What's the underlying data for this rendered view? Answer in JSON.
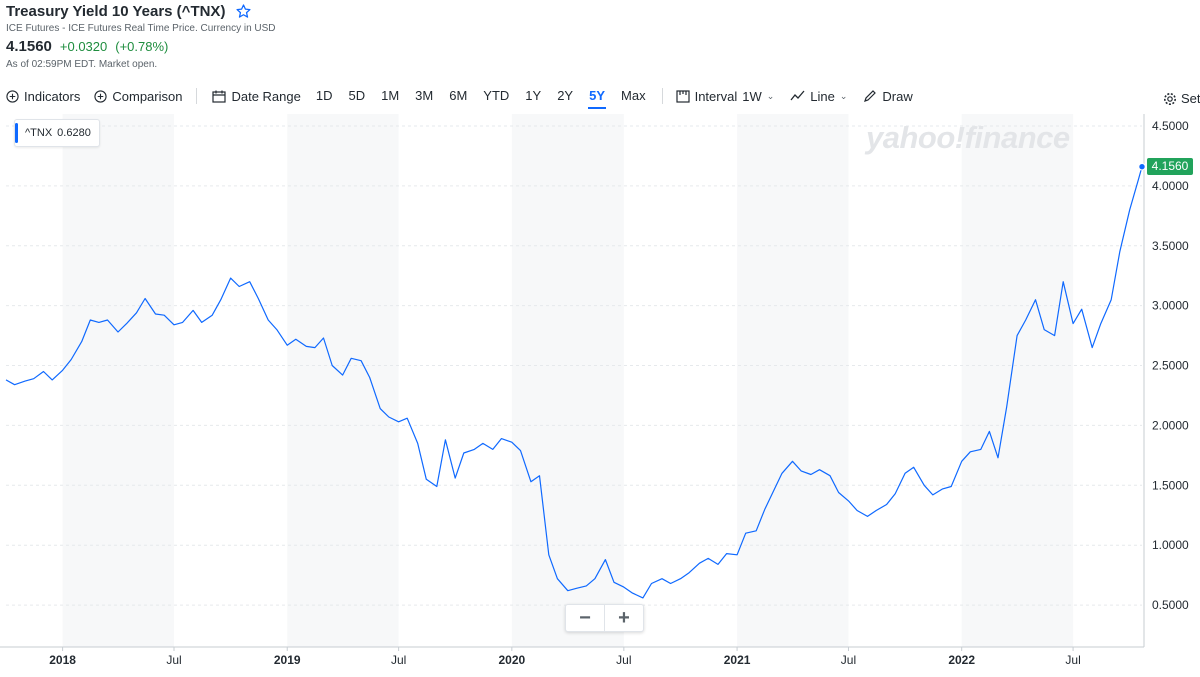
{
  "quote": {
    "title": "Treasury Yield 10 Years (^TNX)",
    "subtitle": "ICE Futures - ICE Futures Real Time Price. Currency in USD",
    "price": "4.1560",
    "change": "+0.0320",
    "change_pct": "(+0.78%)",
    "as_of": "As of 02:59PM EDT. Market open."
  },
  "toolbar": {
    "indicators": "Indicators",
    "comparison": "Comparison",
    "date_range": "Date Range",
    "ranges": [
      "1D",
      "5D",
      "1M",
      "3M",
      "6M",
      "YTD",
      "1Y",
      "2Y",
      "5Y",
      "Max"
    ],
    "active_range": "5Y",
    "interval_label": "Interval",
    "interval_value": "1W",
    "line_label": "Line",
    "draw_label": "Draw",
    "settings_label": "Set"
  },
  "legend": {
    "symbol": "^TNX",
    "value": "0.6280"
  },
  "watermark": "yahoo!finance",
  "last_price_flag": "4.1560",
  "zoom": {
    "minus": "−",
    "plus": "+"
  },
  "colors": {
    "line": "#0f69ff",
    "up": "#21a35b",
    "text": "#232a31",
    "grid": "#e6e9ec",
    "band": "#f7f8f9"
  },
  "chart_data": {
    "type": "line",
    "series": [
      {
        "name": "^TNX",
        "x": [
          "2017-10-01",
          "2017-10-15",
          "2017-11-01",
          "2017-11-15",
          "2017-12-01",
          "2017-12-15",
          "2018-01-01",
          "2018-01-15",
          "2018-02-01",
          "2018-02-15",
          "2018-03-01",
          "2018-03-15",
          "2018-04-01",
          "2018-04-15",
          "2018-05-01",
          "2018-05-15",
          "2018-06-01",
          "2018-06-15",
          "2018-07-01",
          "2018-07-15",
          "2018-08-01",
          "2018-08-15",
          "2018-09-01",
          "2018-09-15",
          "2018-10-01",
          "2018-10-15",
          "2018-11-01",
          "2018-11-15",
          "2018-12-01",
          "2018-12-15",
          "2019-01-01",
          "2019-01-15",
          "2019-02-01",
          "2019-02-15",
          "2019-03-01",
          "2019-03-15",
          "2019-04-01",
          "2019-04-15",
          "2019-05-01",
          "2019-05-15",
          "2019-06-01",
          "2019-06-15",
          "2019-07-01",
          "2019-07-15",
          "2019-08-01",
          "2019-08-15",
          "2019-09-01",
          "2019-09-15",
          "2019-10-01",
          "2019-10-15",
          "2019-11-01",
          "2019-11-15",
          "2019-12-01",
          "2019-12-15",
          "2020-01-01",
          "2020-01-15",
          "2020-02-01",
          "2020-02-15",
          "2020-03-01",
          "2020-03-15",
          "2020-04-01",
          "2020-04-15",
          "2020-05-01",
          "2020-05-15",
          "2020-06-01",
          "2020-06-15",
          "2020-07-01",
          "2020-07-15",
          "2020-08-01",
          "2020-08-15",
          "2020-09-01",
          "2020-09-15",
          "2020-10-01",
          "2020-10-15",
          "2020-11-01",
          "2020-11-15",
          "2020-12-01",
          "2020-12-15",
          "2021-01-01",
          "2021-01-15",
          "2021-02-01",
          "2021-02-15",
          "2021-03-01",
          "2021-03-15",
          "2021-04-01",
          "2021-04-15",
          "2021-05-01",
          "2021-05-15",
          "2021-06-01",
          "2021-06-15",
          "2021-07-01",
          "2021-07-15",
          "2021-08-01",
          "2021-08-15",
          "2021-09-01",
          "2021-09-15",
          "2021-10-01",
          "2021-10-15",
          "2021-11-01",
          "2021-11-15",
          "2021-12-01",
          "2021-12-15",
          "2022-01-01",
          "2022-01-15",
          "2022-02-01",
          "2022-02-15",
          "2022-03-01",
          "2022-03-15",
          "2022-04-01",
          "2022-04-15",
          "2022-05-01",
          "2022-05-15",
          "2022-06-01",
          "2022-06-15",
          "2022-07-01",
          "2022-07-15",
          "2022-08-01",
          "2022-08-15",
          "2022-09-01",
          "2022-09-15",
          "2022-10-01",
          "2022-10-15",
          "2022-10-21"
        ],
        "values": [
          2.38,
          2.34,
          2.37,
          2.39,
          2.45,
          2.38,
          2.46,
          2.55,
          2.7,
          2.88,
          2.86,
          2.88,
          2.78,
          2.85,
          2.94,
          3.06,
          2.93,
          2.92,
          2.84,
          2.86,
          2.96,
          2.86,
          2.92,
          3.05,
          3.23,
          3.16,
          3.2,
          3.06,
          2.88,
          2.8,
          2.67,
          2.72,
          2.66,
          2.65,
          2.73,
          2.5,
          2.42,
          2.56,
          2.54,
          2.4,
          2.14,
          2.07,
          2.03,
          2.06,
          1.85,
          1.55,
          1.49,
          1.88,
          1.56,
          1.77,
          1.8,
          1.85,
          1.8,
          1.89,
          1.86,
          1.79,
          1.53,
          1.58,
          0.92,
          0.72,
          0.62,
          0.64,
          0.66,
          0.72,
          0.88,
          0.69,
          0.65,
          0.6,
          0.56,
          0.68,
          0.72,
          0.68,
          0.72,
          0.77,
          0.85,
          0.89,
          0.84,
          0.93,
          0.92,
          1.1,
          1.12,
          1.3,
          1.45,
          1.6,
          1.7,
          1.62,
          1.59,
          1.63,
          1.58,
          1.44,
          1.37,
          1.29,
          1.24,
          1.29,
          1.34,
          1.43,
          1.6,
          1.65,
          1.5,
          1.42,
          1.47,
          1.49,
          1.7,
          1.78,
          1.8,
          1.95,
          1.73,
          2.15,
          2.75,
          2.88,
          3.05,
          2.8,
          2.75,
          3.2,
          2.85,
          2.97,
          2.65,
          2.85,
          3.05,
          3.45,
          3.8,
          4.05,
          4.16
        ]
      }
    ],
    "ylim": [
      0.15,
      4.6
    ],
    "yticks": [
      "4.5000",
      "4.0000",
      "3.5000",
      "3.0000",
      "2.5000",
      "2.0000",
      "1.5000",
      "1.0000",
      "0.5000"
    ],
    "ytick_values": [
      4.5,
      4.0,
      3.5,
      3.0,
      2.5,
      2.0,
      1.5,
      1.0,
      0.5
    ],
    "xticks": [
      {
        "date": "2018-01-01",
        "label": "2018",
        "major": true
      },
      {
        "date": "2018-07-01",
        "label": "Jul",
        "major": false
      },
      {
        "date": "2019-01-01",
        "label": "2019",
        "major": true
      },
      {
        "date": "2019-07-01",
        "label": "Jul",
        "major": false
      },
      {
        "date": "2020-01-01",
        "label": "2020",
        "major": true
      },
      {
        "date": "2020-07-01",
        "label": "Jul",
        "major": false
      },
      {
        "date": "2021-01-01",
        "label": "2021",
        "major": true
      },
      {
        "date": "2021-07-01",
        "label": "Jul",
        "major": false
      },
      {
        "date": "2022-01-01",
        "label": "2022",
        "major": true
      },
      {
        "date": "2022-07-01",
        "label": "Jul",
        "major": false
      }
    ],
    "x_start": "2017-10-01",
    "x_end": "2022-10-21",
    "grid": true,
    "legend": "top-left"
  }
}
